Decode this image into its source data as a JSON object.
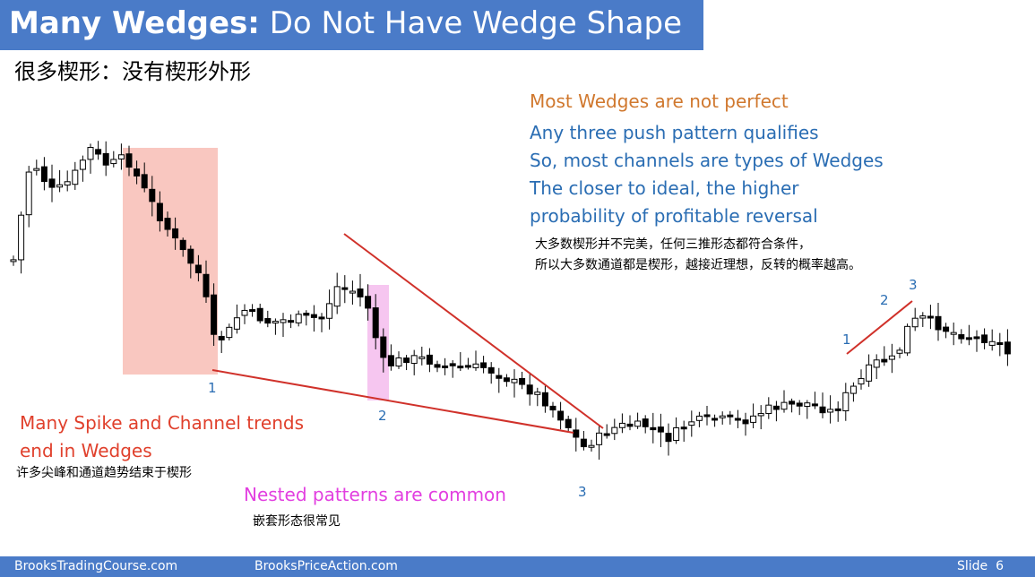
{
  "header": {
    "title_bold": "Many Wedges:",
    "title_rest": "Do Not Have Wedge Shape",
    "subtitle": "很多楔形：没有楔形外形"
  },
  "notes": {
    "right": [
      "Most Wedges are not perfect",
      "Any three push pattern qualifies",
      "So, most channels are types of Wedges",
      "The closer to ideal, the higher",
      "probability of profitable reversal"
    ],
    "right_cn": [
      "大多数楔形并不完美，任何三推形态都符合条件，",
      "所以大多数通道都是楔形，越接近理想，反转的概率越高。"
    ],
    "left": [
      "Many Spike and Channel trends",
      "end in Wedges"
    ],
    "left_cn": "许多尖峰和通道趋势结束于楔形",
    "nested": "Nested patterns are common",
    "nested_cn": "嵌套形态很常见"
  },
  "labels": [
    "1",
    "2",
    "3",
    "1",
    "2",
    "3"
  ],
  "footer": {
    "left": "BrooksTradingCourse.com",
    "middle": "BrooksPriceAction.com",
    "slide": "Slide  6"
  }
}
